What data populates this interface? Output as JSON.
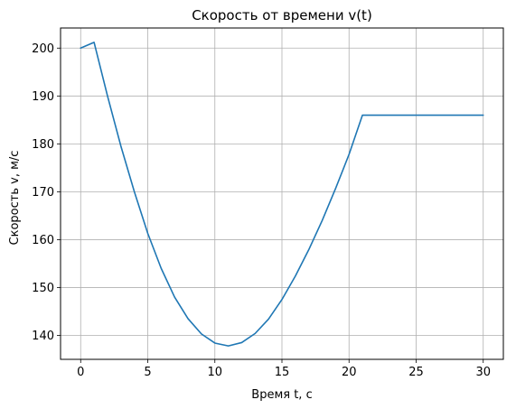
{
  "chart_data": {
    "type": "line",
    "title": "Скорость от времени v(t)",
    "xlabel": "Время t, с",
    "ylabel": "Скорость v, м/с",
    "xlim": [
      -1.5,
      31.5
    ],
    "ylim": [
      135,
      204.2
    ],
    "xticks": [
      0,
      5,
      10,
      15,
      20,
      25,
      30
    ],
    "yticks": [
      140,
      150,
      160,
      170,
      180,
      190,
      200
    ],
    "grid": true,
    "colors": {
      "series": "#1f77b4",
      "grid": "#b0b0b0"
    },
    "series": [
      {
        "x": [
          0,
          1,
          2,
          3,
          4,
          5,
          6,
          7,
          8,
          9,
          10,
          11,
          12,
          13,
          14,
          15,
          16,
          17,
          18,
          19,
          20,
          21,
          22,
          23,
          24,
          25,
          26,
          27,
          28,
          29,
          30
        ],
        "values": [
          200.0,
          201.2,
          190.0,
          179.5,
          170.0,
          161.3,
          154.0,
          148.0,
          143.5,
          140.3,
          138.4,
          137.8,
          138.5,
          140.4,
          143.4,
          147.5,
          152.4,
          157.9,
          164.0,
          170.7,
          177.8,
          186.0,
          186.0,
          186.0,
          186.0,
          186.0,
          186.0,
          186.0,
          186.0,
          186.0,
          186.0
        ]
      }
    ]
  }
}
